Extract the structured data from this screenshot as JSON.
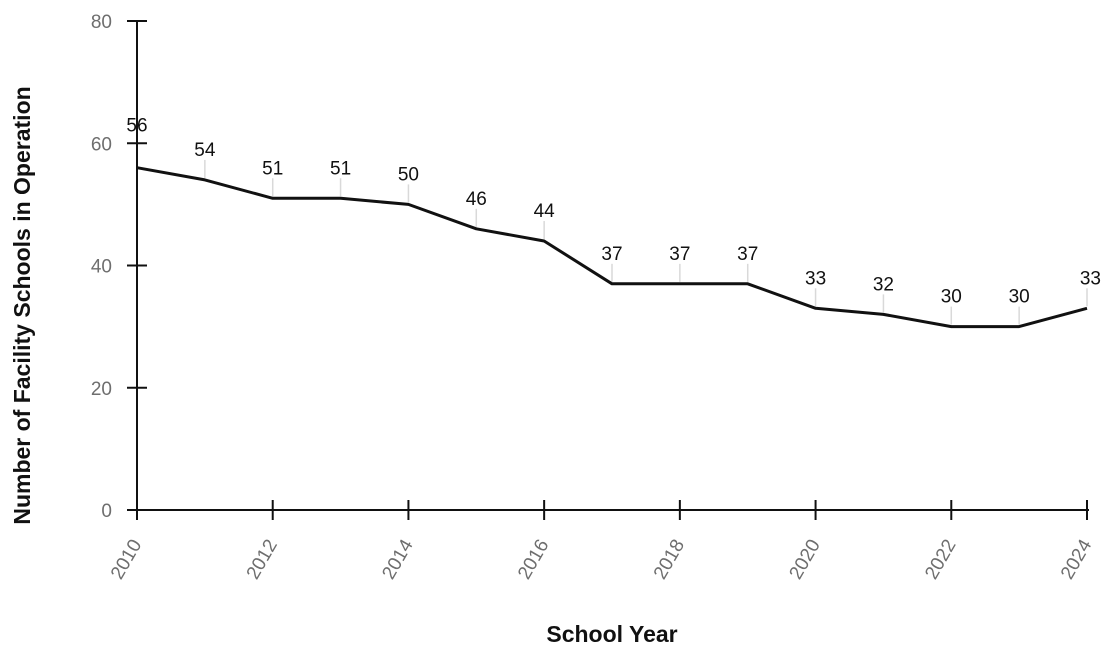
{
  "chart_data": {
    "type": "line",
    "title": "",
    "xlabel": "School Year",
    "ylabel": "Number of Facility Schools in Operation",
    "x": [
      2010,
      2011,
      2012,
      2013,
      2014,
      2015,
      2016,
      2017,
      2018,
      2019,
      2020,
      2021,
      2022,
      2023,
      2024
    ],
    "series": [
      {
        "values": [
          56,
          54,
          51,
          51,
          50,
          46,
          44,
          37,
          37,
          37,
          33,
          32,
          30,
          30,
          33
        ]
      }
    ],
    "xticks": [
      "2010",
      "2012",
      "2014",
      "2016",
      "2018",
      "2020",
      "2022",
      "2024"
    ],
    "yticks": [
      "0",
      "20",
      "40",
      "60",
      "80"
    ],
    "xlim": [
      2010,
      2024
    ],
    "ylim": [
      0,
      80
    ],
    "grid": false,
    "legend": "none",
    "data_labels": true,
    "colors": {
      "line": "#111111",
      "axis": "#111111",
      "tick_text": "#6e6e6e",
      "leader": "#d9d9d9"
    }
  }
}
